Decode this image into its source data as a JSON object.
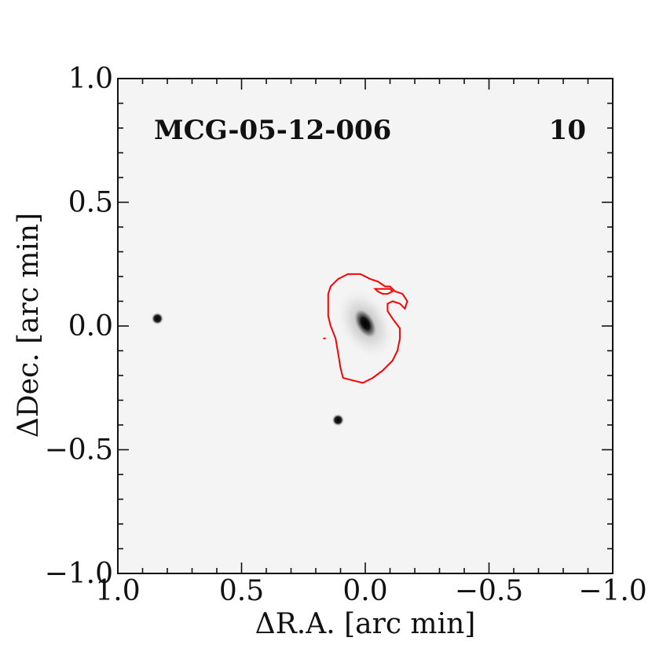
{
  "chart_data": {
    "type": "scatter",
    "title": "",
    "xlabel": "ΔR.A. [arc min]",
    "ylabel": "ΔDec. [arc min]",
    "xlim": [
      1.0,
      -1.0
    ],
    "ylim": [
      -1.0,
      1.0
    ],
    "x_inverted": true,
    "x_ticks": [
      1.0,
      0.5,
      0.0,
      -0.5,
      -1.0
    ],
    "x_tick_labels": [
      "1.0",
      "0.5",
      "0.0",
      "−0.5",
      "−1.0"
    ],
    "y_ticks": [
      1.0,
      0.5,
      0.0,
      -0.5,
      -1.0
    ],
    "y_tick_labels": [
      "1.0",
      "0.5",
      "0.0",
      "−0.5",
      "−1.0"
    ],
    "grid": false,
    "annotations": [
      {
        "text": "MCG-05-12-006",
        "position": "top-left"
      },
      {
        "text": "10",
        "position": "top-right"
      }
    ],
    "image": {
      "colormap": "grayscale",
      "background": "#f4f4f4"
    },
    "sources": [
      {
        "kind": "galaxy",
        "x": 0.0,
        "y": 0.01,
        "rx": 0.04,
        "ry": 0.07,
        "angle": -30
      },
      {
        "kind": "star",
        "x": 0.84,
        "y": 0.03
      },
      {
        "kind": "star",
        "x": 0.11,
        "y": -0.38
      }
    ],
    "contour": {
      "color": "#ff0000",
      "points": [
        [
          0.15,
          0.07
        ],
        [
          0.15,
          0.13
        ],
        [
          0.14,
          0.16
        ],
        [
          0.11,
          0.19
        ],
        [
          0.07,
          0.21
        ],
        [
          0.02,
          0.21
        ],
        [
          -0.02,
          0.19
        ],
        [
          -0.05,
          0.18
        ],
        [
          -0.08,
          0.16
        ],
        [
          -0.1,
          0.16
        ],
        [
          -0.12,
          0.14
        ],
        [
          -0.15,
          0.13
        ],
        [
          -0.17,
          0.1
        ],
        [
          -0.16,
          0.07
        ],
        [
          -0.14,
          0.09
        ],
        [
          -0.11,
          0.1
        ],
        [
          -0.09,
          0.09
        ],
        [
          -0.09,
          0.06
        ],
        [
          -0.11,
          0.03
        ],
        [
          -0.14,
          -0.01
        ],
        [
          -0.14,
          -0.05
        ],
        [
          -0.13,
          -0.1
        ],
        [
          -0.11,
          -0.14
        ],
        [
          -0.07,
          -0.18
        ],
        [
          -0.03,
          -0.21
        ],
        [
          0.01,
          -0.23
        ],
        [
          0.05,
          -0.22
        ],
        [
          0.09,
          -0.21
        ],
        [
          0.1,
          -0.17
        ],
        [
          0.11,
          -0.11
        ],
        [
          0.12,
          -0.05
        ],
        [
          0.14,
          0.0
        ],
        [
          0.15,
          0.04
        ],
        [
          0.15,
          0.07
        ]
      ],
      "stray": [
        [
          0.17,
          -0.05
        ],
        [
          0.16,
          -0.05
        ]
      ],
      "inner_loop": [
        [
          -0.04,
          0.15
        ],
        [
          -0.07,
          0.15
        ],
        [
          -0.1,
          0.15
        ],
        [
          -0.11,
          0.14
        ],
        [
          -0.09,
          0.13
        ],
        [
          -0.07,
          0.13
        ],
        [
          -0.05,
          0.14
        ],
        [
          -0.04,
          0.15
        ]
      ]
    }
  }
}
